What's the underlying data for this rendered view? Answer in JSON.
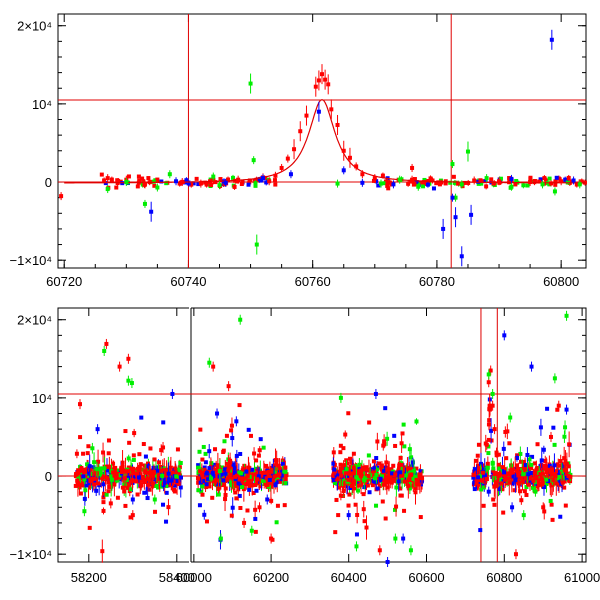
{
  "chart_data": [
    {
      "type": "scatter",
      "title": "",
      "xlabel": "",
      "ylabel": "",
      "xlim": [
        60719,
        60804
      ],
      "ylim": [
        -11000,
        21500
      ],
      "x_ticks": [
        {
          "value": 60720,
          "label": "60720"
        },
        {
          "value": 60740,
          "label": "60740"
        },
        {
          "value": 60760,
          "label": "60760"
        },
        {
          "value": 60780,
          "label": "60780"
        },
        {
          "value": 60800,
          "label": "60800"
        }
      ],
      "y_ticks": [
        {
          "value": -10000,
          "label": "−1×10⁴"
        },
        {
          "value": 0,
          "label": "0"
        },
        {
          "value": 10000,
          "label": "10⁴"
        },
        {
          "value": 20000,
          "label": "2×10⁴"
        }
      ],
      "hlines": [
        0,
        10500
      ],
      "vlines": [
        60740,
        60782.3
      ],
      "model_curve": {
        "peak_x": 60761.5,
        "peak_y": 10700,
        "width": 2.6
      },
      "series": [
        {
          "name": "red",
          "color": "#ff0000",
          "points": [
            [
              60760.5,
              12200
            ],
            [
              60761,
              13000
            ],
            [
              60761.5,
              13800
            ],
            [
              60762,
              13100
            ],
            [
              60762.5,
              12500
            ],
            [
              60759,
              8500
            ],
            [
              60758,
              6500
            ],
            [
              60763,
              9300
            ],
            [
              60764,
              7300
            ],
            [
              60757,
              4200
            ],
            [
              60756,
              3000
            ],
            [
              60765,
              4000
            ],
            [
              60766,
              3100
            ],
            [
              60755,
              1800
            ],
            [
              60767,
              2000
            ],
            [
              60768,
              1000
            ],
            [
              60754,
              800
            ],
            [
              60730,
              300
            ],
            [
              60727,
              500
            ],
            [
              60744,
              200
            ],
            [
              60748,
              300
            ],
            [
              60752,
              600
            ],
            [
              60770,
              500
            ],
            [
              60776,
              300
            ],
            [
              60786,
              200
            ],
            [
              60790,
              100
            ],
            [
              60795,
              0
            ],
            [
              60800,
              100
            ],
            [
              60719.5,
              -1800
            ],
            [
              60733,
              -300
            ],
            [
              60776,
              1800
            ],
            [
              60772,
              -500
            ],
            [
              60742,
              -200
            ],
            [
              60739,
              0
            ],
            [
              60753,
              100
            ]
          ]
        },
        {
          "name": "green",
          "color": "#00ee00",
          "points": [
            [
              60750,
              12600
            ],
            [
              60750.5,
              2800
            ],
            [
              60751,
              -8000
            ],
            [
              60727,
              -900
            ],
            [
              60730,
              0
            ],
            [
              60733,
              -2800
            ],
            [
              60735,
              -700
            ],
            [
              60737,
              1000
            ],
            [
              60745,
              -400
            ],
            [
              60771,
              -200
            ],
            [
              60774,
              300
            ],
            [
              60777,
              -600
            ],
            [
              60782.5,
              2300
            ],
            [
              60783,
              -2000
            ],
            [
              60784,
              -300
            ],
            [
              60785,
              3900
            ],
            [
              60788,
              500
            ],
            [
              60792,
              -600
            ],
            [
              60797,
              -300
            ],
            [
              60799,
              -1200
            ],
            [
              60803,
              -300
            ],
            [
              60764,
              -200
            ],
            [
              60744,
              700
            ]
          ]
        },
        {
          "name": "blue",
          "color": "#0000ff",
          "points": [
            [
              60798.5,
              18200
            ],
            [
              60734,
              -3800
            ],
            [
              60756.5,
              1000
            ],
            [
              60773,
              -300
            ],
            [
              60781,
              -6000
            ],
            [
              60782.5,
              -2000
            ],
            [
              60783,
              -4500
            ],
            [
              60784,
              -9500
            ],
            [
              60785.5,
              -4200
            ],
            [
              60746,
              -100
            ],
            [
              60752,
              500
            ],
            [
              60765,
              1500
            ],
            [
              60792,
              400
            ],
            [
              60802,
              200
            ],
            [
              60768,
              -100
            ],
            [
              60738,
              100
            ],
            [
              60761,
              9000
            ]
          ]
        }
      ]
    },
    {
      "type": "scatter",
      "title": "",
      "xlabel": "",
      "ylabel": "",
      "breaks": [
        {
          "xlim": [
            58130,
            58430
          ],
          "x_ticks": [
            {
              "value": 58200,
              "label": "58200"
            },
            {
              "value": 58400,
              "label": "58400"
            }
          ]
        },
        {
          "xlim": [
            59990,
            60280
          ],
          "x_ticks": [
            {
              "value": 60000,
              "label": "60000"
            },
            {
              "value": 60200,
              "label": "60200"
            }
          ]
        },
        {
          "xlim": [
            60280,
            61010
          ],
          "x_ticks": [
            {
              "value": 60400,
              "label": "60400"
            },
            {
              "value": 60600,
              "label": "60600"
            },
            {
              "value": 60800,
              "label": "60800"
            },
            {
              "value": 61000,
              "label": "61000"
            }
          ]
        }
      ],
      "ylim": [
        -11000,
        21500
      ],
      "y_ticks": [
        {
          "value": -10000,
          "label": "−1×10⁴"
        },
        {
          "value": 0,
          "label": "0"
        },
        {
          "value": 10000,
          "label": "10⁴"
        },
        {
          "value": 20000,
          "label": "2×10⁴"
        }
      ],
      "hlines": [
        0,
        10500
      ],
      "vlines": [
        60740,
        60782
      ],
      "seasons": [
        [
          58170,
          58410
        ],
        [
          60010,
          60240
        ],
        [
          60360,
          60590
        ],
        [
          60720,
          60970
        ]
      ],
      "noise_scatter_sd": 1500,
      "series": [
        {
          "name": "red",
          "color": "#ff0000",
          "points": [
            [
              58240,
              16900
            ],
            [
              58290,
              15000
            ],
            [
              58270,
              14000
            ],
            [
              58180,
              9200
            ],
            [
              58250,
              -3500
            ],
            [
              58300,
              -5000
            ],
            [
              60050,
              14000
            ],
            [
              60090,
              11500
            ],
            [
              60130,
              -6000
            ],
            [
              60170,
              -4000
            ],
            [
              60200,
              -8000
            ],
            [
              60480,
              -9500
            ],
            [
              60760,
              12000
            ],
            [
              60765,
              13500
            ],
            [
              60770,
              9000
            ],
            [
              60775,
              6000
            ],
            [
              60755,
              4000
            ],
            [
              60780,
              3000
            ],
            [
              60830,
              -10000
            ],
            [
              60900,
              -4000
            ],
            [
              60940,
              9000
            ],
            [
              60920,
              5000
            ]
          ]
        },
        {
          "name": "green",
          "color": "#00ee00",
          "points": [
            [
              58235,
              16000
            ],
            [
              58290,
              12200
            ],
            [
              58298,
              11900
            ],
            [
              58190,
              -4500
            ],
            [
              58350,
              -3000
            ],
            [
              60040,
              14500
            ],
            [
              60070,
              -8000
            ],
            [
              60120,
              20000
            ],
            [
              60150,
              -7000
            ],
            [
              60380,
              10000
            ],
            [
              60420,
              -9000
            ],
            [
              60520,
              -8000
            ],
            [
              60560,
              -9500
            ],
            [
              60760,
              13000
            ],
            [
              60770,
              10500
            ],
            [
              60850,
              -5000
            ],
            [
              60960,
              20500
            ],
            [
              60880,
              -2000
            ],
            [
              60930,
              12500
            ]
          ]
        },
        {
          "name": "blue",
          "color": "#0000ff",
          "points": [
            [
              58390,
              10500
            ],
            [
              58220,
              6000
            ],
            [
              58300,
              -3000
            ],
            [
              60060,
              8000
            ],
            [
              60110,
              7000
            ],
            [
              60190,
              -3000
            ],
            [
              60470,
              10500
            ],
            [
              60400,
              -5000
            ],
            [
              60540,
              -8000
            ],
            [
              60500,
              -11000
            ],
            [
              60800,
              18000
            ],
            [
              60870,
              14000
            ],
            [
              60960,
              8500
            ],
            [
              60760,
              -2000
            ],
            [
              60820,
              -4000
            ]
          ]
        }
      ]
    }
  ]
}
